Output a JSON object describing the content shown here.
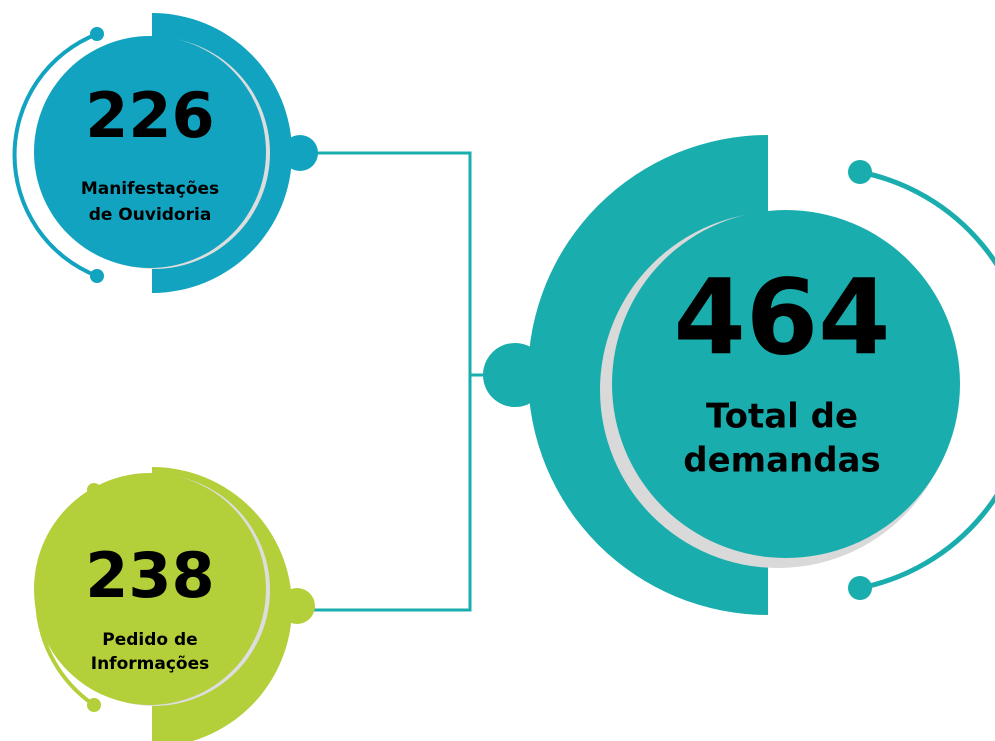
{
  "nodes": [
    {
      "value": 226,
      "label": [
        "Manifestações",
        "de Ouvidoria"
      ]
    },
    {
      "value": 238,
      "label": [
        "Pedido de",
        "Informações"
      ]
    },
    {
      "value": 464,
      "label": [
        "Total de",
        "demandas"
      ]
    }
  ]
}
